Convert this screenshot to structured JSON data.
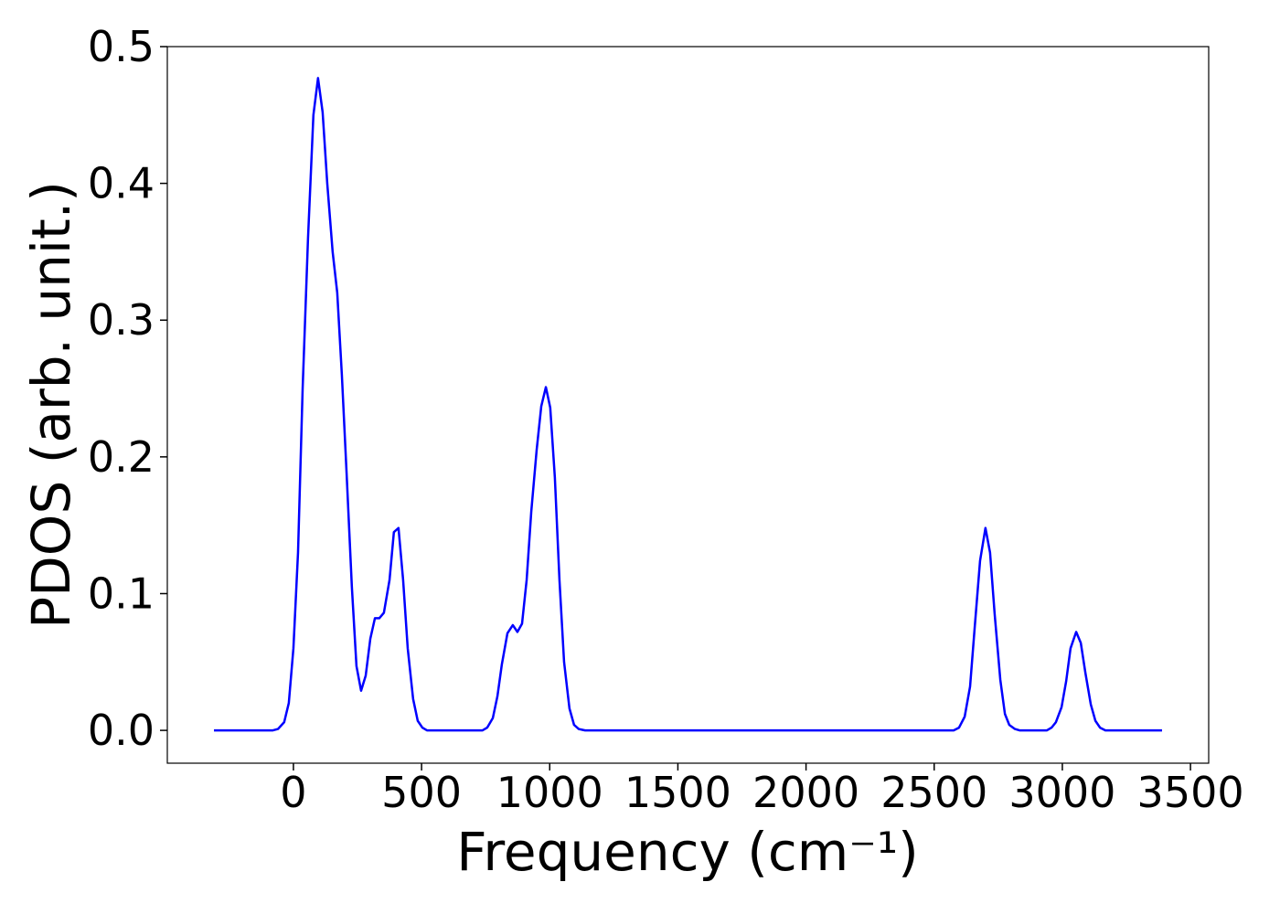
{
  "chart_data": {
    "type": "line",
    "xlabel": "Frequency (cm⁻¹)",
    "ylabel": "PDOS (arb. unit.)",
    "color": "#0000ff",
    "x": [
      -310,
      -80,
      -60,
      -36,
      -18,
      0,
      18,
      36,
      57,
      78,
      96,
      114,
      132,
      153,
      171,
      189,
      207,
      228,
      246,
      264,
      282,
      300,
      318,
      335,
      353,
      375,
      392,
      410,
      428,
      446,
      467,
      485,
      503,
      521,
      738,
      756,
      778,
      796,
      813,
      835,
      856,
      874,
      892,
      910,
      928,
      949,
      967,
      985,
      1002,
      1020,
      1038,
      1056,
      1077,
      1095,
      1113,
      1138,
      2576,
      2597,
      2619,
      2640,
      2658,
      2679,
      2700,
      2718,
      2736,
      2758,
      2776,
      2793,
      2815,
      2833,
      2940,
      2958,
      2975,
      2997,
      3015,
      3032,
      3054,
      3072,
      3090,
      3111,
      3129,
      3147,
      3168,
      3389
    ],
    "values": [
      0,
      0,
      0.001,
      0.006,
      0.02,
      0.06,
      0.13,
      0.25,
      0.36,
      0.45,
      0.477,
      0.452,
      0.4,
      0.35,
      0.32,
      0.26,
      0.19,
      0.105,
      0.047,
      0.029,
      0.04,
      0.067,
      0.082,
      0.082,
      0.086,
      0.11,
      0.145,
      0.148,
      0.11,
      0.06,
      0.023,
      0.007,
      0.002,
      0,
      0,
      0.002,
      0.009,
      0.025,
      0.048,
      0.071,
      0.077,
      0.072,
      0.078,
      0.11,
      0.16,
      0.205,
      0.237,
      0.251,
      0.236,
      0.185,
      0.11,
      0.05,
      0.016,
      0.004,
      0.001,
      0,
      0,
      0.002,
      0.01,
      0.032,
      0.075,
      0.124,
      0.148,
      0.13,
      0.085,
      0.037,
      0.012,
      0.004,
      0.001,
      0,
      0,
      0.002,
      0.006,
      0.017,
      0.036,
      0.06,
      0.072,
      0.064,
      0.042,
      0.019,
      0.007,
      0.002,
      0,
      0
    ],
    "xlim": [
      -492,
      3571
    ],
    "ylim": [
      -0.024,
      0.5
    ],
    "xticks": [
      0,
      500,
      1000,
      1500,
      2000,
      2500,
      3000,
      3500
    ],
    "yticks": [
      {
        "value": 0,
        "label": "0.0"
      },
      0.1,
      0.2,
      0.3,
      0.4,
      0.5
    ]
  }
}
